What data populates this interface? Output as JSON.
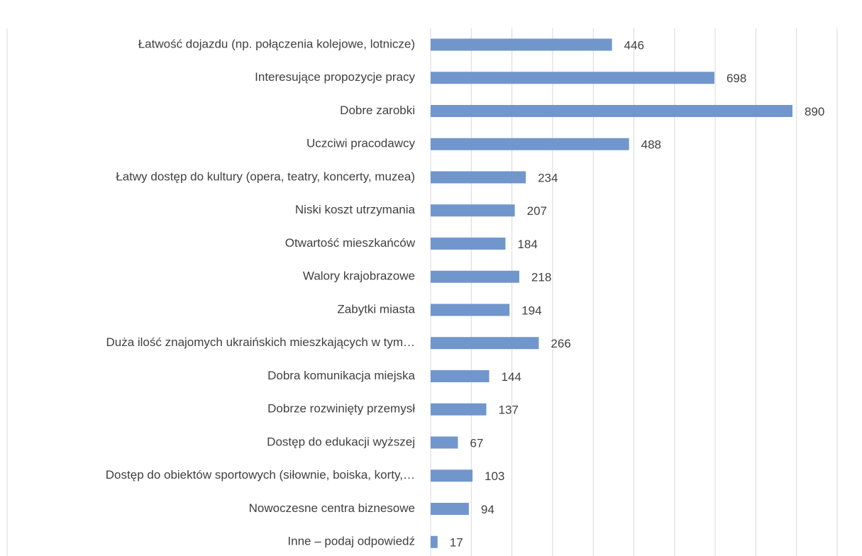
{
  "chart_data": {
    "type": "bar",
    "orientation": "horizontal",
    "categories": [
      "Łatwość dojazdu (np. połączenia kolejowe, lotnicze)",
      "Interesujące propozycje pracy",
      "Dobre zarobki",
      "Uczciwi pracodawcy",
      "Łatwy dostęp do kultury (opera, teatry, koncerty, muzea)",
      "Niski koszt utrzymania",
      "Otwartość mieszkańców",
      "Walory krajobrazowe",
      "Zabytki miasta",
      "Duża ilość znajomych ukraińskich mieszkających w tym…",
      "Dobra komunikacja miejska",
      "Dobrze rozwinięty przemysł",
      "Dostęp do edukacji wyższej",
      "Dostęp do obiektów sportowych (siłownie, boiska, korty,…",
      "Nowoczesne centra biznesowe",
      "Inne – podaj odpowiedź"
    ],
    "values": [
      446,
      698,
      890,
      488,
      234,
      207,
      184,
      218,
      194,
      266,
      144,
      137,
      67,
      103,
      94,
      17
    ],
    "color": "#7096cc",
    "xlim": [
      0,
      1000
    ],
    "xticks": [
      0,
      100,
      200,
      300,
      400,
      500,
      600,
      700,
      800,
      900,
      1000
    ],
    "grid": true
  }
}
